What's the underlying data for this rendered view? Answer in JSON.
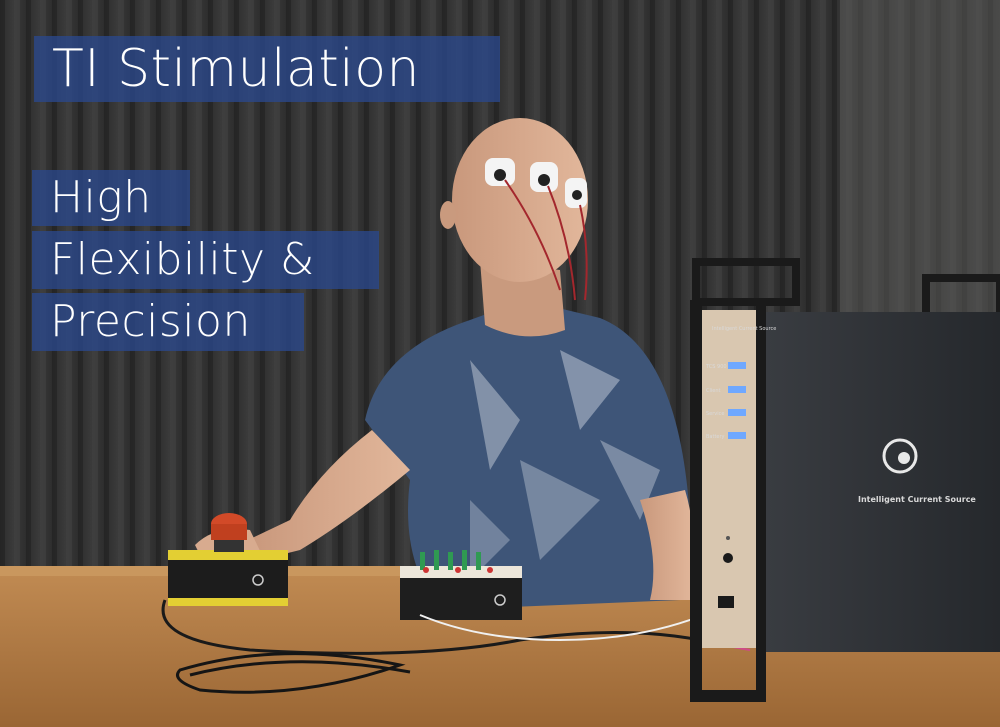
{
  "overlay": {
    "title": "TI Stimulation",
    "subtitle_lines": [
      "High",
      "Flexibility &",
      "Precision"
    ]
  },
  "device": {
    "panel_brand": "Intelligent Current Source",
    "status_labels": [
      "TCS 900",
      "Client",
      "Service",
      "Battery"
    ],
    "front_brand": "Intelligent Current Source"
  },
  "colors": {
    "overlay_box": "#2a488c",
    "curtain": "#3a3a3a",
    "table": "#b07a45",
    "shirt": "#3e5578",
    "device_body": "#2c2f33",
    "panel": "#d9c7b0",
    "led": "#6fa8ff",
    "emergency_button": "#d24a28",
    "button_box": "#e3cf33"
  }
}
